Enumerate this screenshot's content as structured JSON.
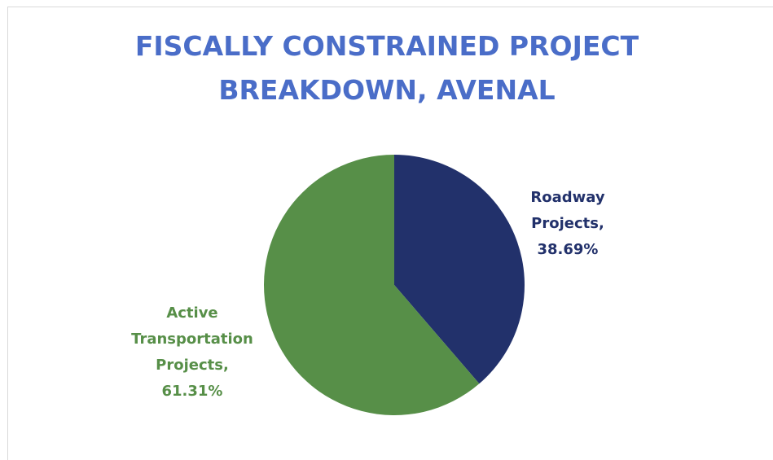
{
  "chart_data": {
    "type": "pie",
    "title": "FISCALLY CONSTRAINED PROJECT BREAKDOWN, AVENAL",
    "categories": [
      "Roadway Projects",
      "Active Transportation Projects"
    ],
    "values": [
      38.69,
      61.31
    ],
    "value_labels": [
      "38.69%",
      "61.31%"
    ],
    "colors": [
      "#22316b",
      "#578f48"
    ]
  }
}
